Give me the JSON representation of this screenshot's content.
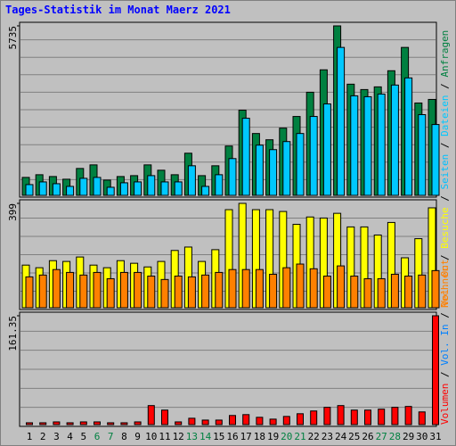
{
  "title": "Tages-Statistik im Monat Maerz 2021",
  "categories": [
    "1",
    "2",
    "3",
    "4",
    "5",
    "6",
    "7",
    "8",
    "9",
    "10",
    "11",
    "12",
    "13",
    "14",
    "15",
    "16",
    "17",
    "18",
    "19",
    "20",
    "21",
    "22",
    "23",
    "24",
    "25",
    "26",
    "27",
    "28",
    "29",
    "30",
    "31"
  ],
  "category_colors": [
    "#000000",
    "#000000",
    "#000000",
    "#000000",
    "#000000",
    "#008040",
    "#008040",
    "#000000",
    "#000000",
    "#000000",
    "#000000",
    "#000000",
    "#008040",
    "#008040",
    "#000000",
    "#000000",
    "#000000",
    "#000000",
    "#000000",
    "#008040",
    "#008040",
    "#000000",
    "#000000",
    "#000000",
    "#000000",
    "#000000",
    "#008040",
    "#008040",
    "#000000",
    "#000000",
    "#000000"
  ],
  "separator": "/",
  "other_labels": [
    {
      "name": "Seiten",
      "color": "#00c0ff"
    },
    {
      "name": "Vol. In",
      "color": "#0080ff"
    },
    {
      "name": "Vol. Out",
      "color": "#ff8000"
    }
  ],
  "chart_data": [
    {
      "type": "bar",
      "ylim": [
        0,
        5735
      ],
      "yticks": [
        5735
      ],
      "grid": true,
      "series": [
        {
          "name": "Anfragen",
          "color": "#008040",
          "values": [
            607,
            698,
            637,
            546,
            910,
            1031,
            516,
            637,
            667,
            1031,
            850,
            698,
            1426,
            667,
            1001,
            1669,
            2882,
            2093,
            1881,
            2275,
            2669,
            3489,
            4248,
            5735,
            3762,
            3580,
            3671,
            4217,
            5006,
            3125,
            3246
          ]
        },
        {
          "name": "Dateien",
          "color": "#00c8ff",
          "values": [
            364,
            455,
            394,
            303,
            576,
            607,
            273,
            425,
            455,
            667,
            455,
            455,
            1001,
            303,
            698,
            1244,
            2609,
            1699,
            1547,
            1820,
            2093,
            2670,
            3094,
            5006,
            3368,
            3337,
            3428,
            3732,
            3974,
            2731,
            2397
          ]
        }
      ]
    },
    {
      "type": "bar",
      "ylim": [
        0,
        399
      ],
      "yticks": [
        399
      ],
      "grid": true,
      "series": [
        {
          "name": "Besuche",
          "color": "#ffff00",
          "values": [
            163,
            153,
            180,
            177,
            194,
            163,
            153,
            180,
            170,
            156,
            177,
            219,
            232,
            177,
            222,
            375,
            399,
            375,
            375,
            368,
            319,
            347,
            343,
            361,
            309,
            309,
            278,
            326,
            191,
            264,
            382
          ]
        },
        {
          "name": "Rechner",
          "color": "#ff8000",
          "values": [
            118,
            125,
            146,
            135,
            125,
            135,
            111,
            135,
            135,
            121,
            108,
            121,
            118,
            125,
            135,
            146,
            146,
            146,
            128,
            153,
            167,
            149,
            121,
            160,
            121,
            111,
            111,
            128,
            121,
            125,
            142
          ]
        }
      ]
    },
    {
      "type": "bar",
      "ylim": [
        0,
        161.35
      ],
      "yticks": [
        161.35
      ],
      "grid": true,
      "series": [
        {
          "name": "Volumen",
          "color": "#ff0000",
          "values": [
            2.7,
            2.7,
            4.0,
            2.7,
            4.0,
            4.0,
            2.7,
            2.7,
            4.0,
            28.2,
            21.5,
            4.0,
            9.4,
            6.7,
            6.7,
            13.5,
            14.8,
            10.8,
            8.1,
            12.1,
            16.1,
            20.2,
            25.6,
            28.2,
            21.5,
            21.5,
            22.9,
            25.6,
            26.9,
            18.8,
            161.35
          ]
        }
      ]
    }
  ]
}
